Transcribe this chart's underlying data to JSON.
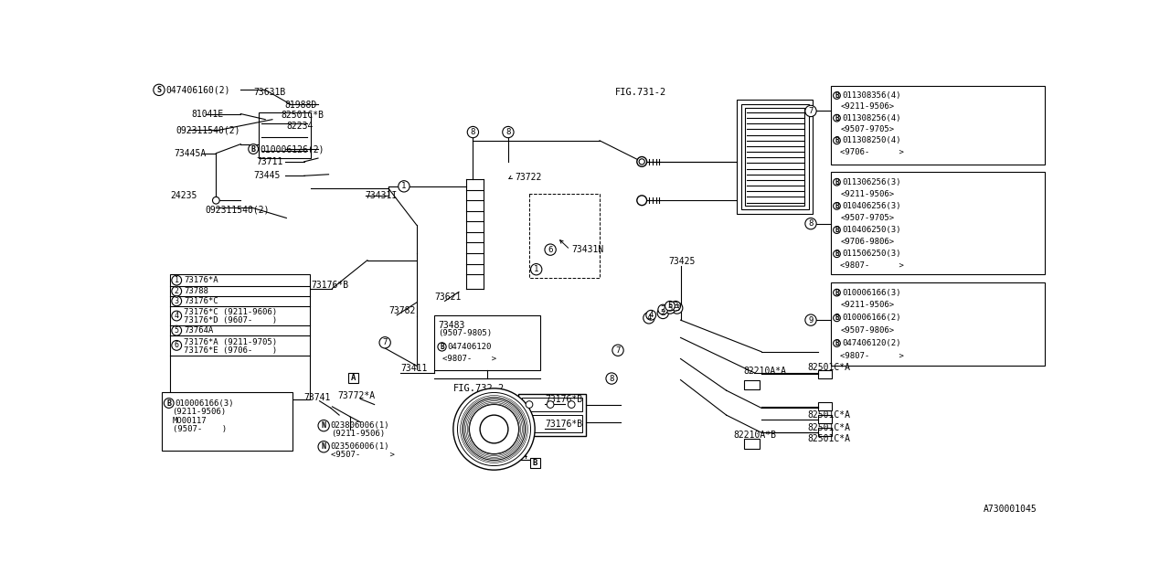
{
  "bg_color": "#ffffff",
  "line_color": "#000000",
  "font_color": "#000000",
  "fig_ref": "A730001045",
  "right_box1_lines": [
    [
      "B",
      "011308356(4)"
    ],
    [
      "",
      "<9211-9506>"
    ],
    [
      "B",
      "011308256(4)"
    ],
    [
      "",
      "<9507-9705>"
    ],
    [
      "B",
      "011308250(4)"
    ],
    [
      "",
      "<9706-      >"
    ]
  ],
  "right_box2_lines": [
    [
      "B",
      "011306256(3)"
    ],
    [
      "",
      "<9211-9506>"
    ],
    [
      "B",
      "010406256(3)"
    ],
    [
      "",
      "<9507-9705>"
    ],
    [
      "B",
      "010406250(3)"
    ],
    [
      "",
      "<9706-9806>"
    ],
    [
      "B",
      "011506250(3)"
    ],
    [
      "",
      "<9807-      >"
    ]
  ],
  "right_box3_lines": [
    [
      "B",
      "010006166(3)"
    ],
    [
      "",
      "<9211-9506>"
    ],
    [
      "B",
      "010006166(2)"
    ],
    [
      "",
      "<9507-9806>"
    ],
    [
      "B",
      "047406120(2)"
    ],
    [
      "",
      "<9807-      >"
    ]
  ],
  "legend_rows": [
    [
      "1",
      "73176*A"
    ],
    [
      "2",
      "73788"
    ],
    [
      "3",
      "73176*C"
    ],
    [
      "4",
      "73176*C (9211-9606)\n73176*D (9607-    )"
    ],
    [
      "5",
      "73764A"
    ],
    [
      "6",
      "73176*A (9211-9705)\n73176*E (9706-    )"
    ]
  ]
}
